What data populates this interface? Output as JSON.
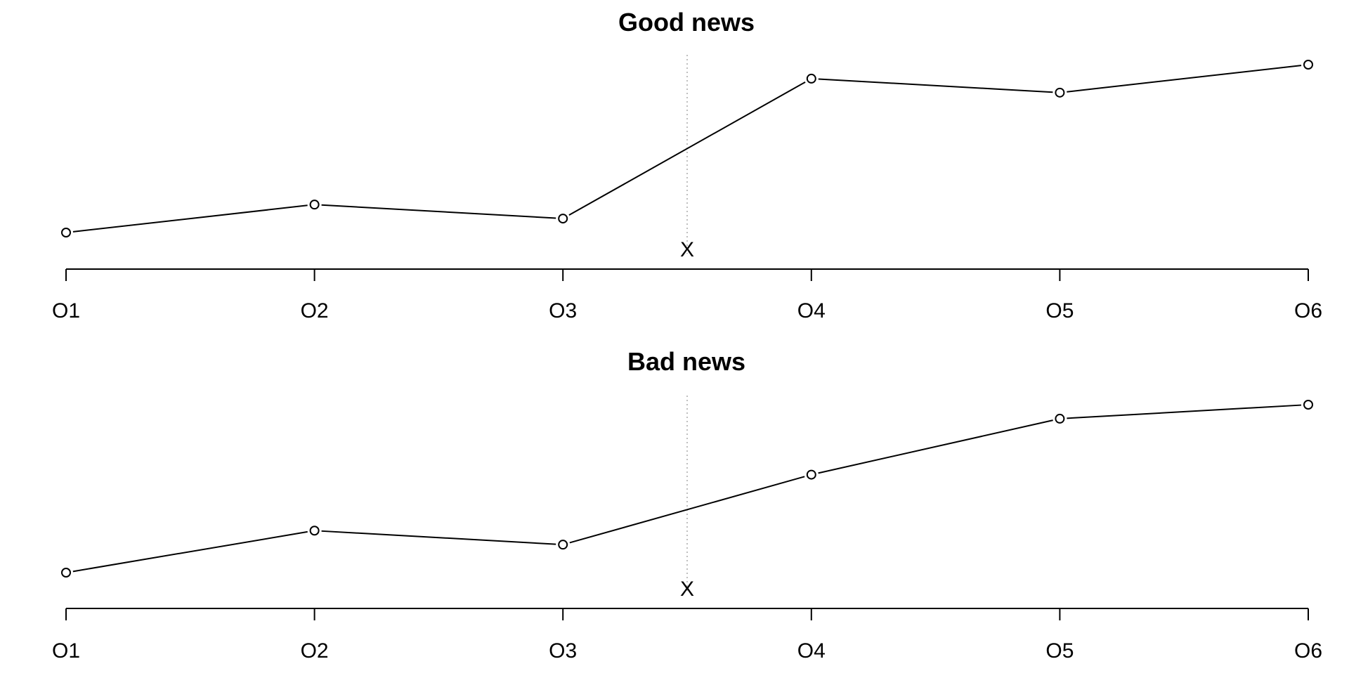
{
  "chart_data": [
    {
      "type": "line",
      "title": "Good news",
      "categories": [
        "O1",
        "O2",
        "O3",
        "O4",
        "O5",
        "O6"
      ],
      "values": [
        0.0,
        0.2,
        0.1,
        1.1,
        1.0,
        1.2
      ],
      "ylim": [
        0.0,
        1.2
      ],
      "marker": {
        "position": 3.5,
        "label": "X"
      },
      "grid": false,
      "yaxis_visible": false
    },
    {
      "type": "line",
      "title": "Bad news",
      "categories": [
        "O1",
        "O2",
        "O3",
        "O4",
        "O5",
        "O6"
      ],
      "values": [
        0.0,
        0.3,
        0.2,
        0.7,
        1.1,
        1.2
      ],
      "ylim": [
        0.0,
        1.2
      ],
      "marker": {
        "position": 3.5,
        "label": "X"
      },
      "grid": false,
      "yaxis_visible": false
    }
  ],
  "colors": {
    "line": "#000000",
    "point_fill": "#ffffff",
    "marker_line": "#aaaaaa",
    "axis": "#000000"
  }
}
